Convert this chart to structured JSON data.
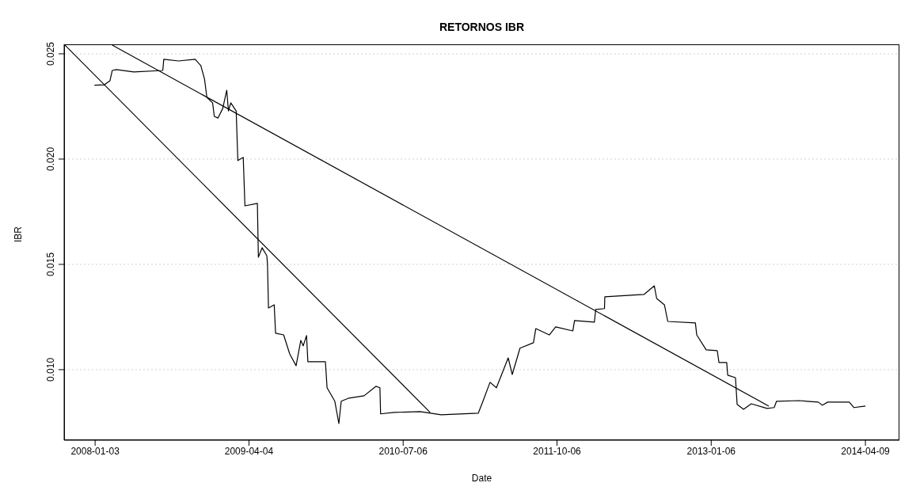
{
  "chart_data": {
    "type": "line",
    "title": "RETORNOS IBR",
    "xlabel": "Date",
    "ylabel": "IBR",
    "xlim": [
      "2007-10-03",
      "2014-07-19"
    ],
    "xticks": [
      "2008-01-03",
      "2009-04-04",
      "2010-07-06",
      "2011-10-06",
      "2013-01-06",
      "2014-04-09"
    ],
    "ylim": [
      0.00665,
      0.02545
    ],
    "yticks": [
      {
        "value": 0.01,
        "label": "0.010"
      },
      {
        "value": 0.015,
        "label": "0.015"
      },
      {
        "value": 0.02,
        "label": "0.020"
      },
      {
        "value": 0.025,
        "label": "0.025"
      }
    ],
    "grid": "y",
    "marker": "none",
    "line_style": "solid",
    "series": [
      {
        "color": "#000000",
        "x": [
          "2008-01-01",
          "2008-01-31",
          "2008-02-16",
          "2008-02-23",
          "2008-03-06",
          "2008-04-27",
          "2008-07-22",
          "2008-07-25",
          "2008-09-07",
          "2008-10-26",
          "2008-11-12",
          "2008-11-23",
          "2008-11-30",
          "2008-12-17",
          "2008-12-22",
          "2009-01-02",
          "2009-01-16",
          "2009-01-28",
          "2009-02-02",
          "2009-02-09",
          "2009-02-25",
          "2009-03-02",
          "2009-03-18",
          "2009-03-23",
          "2009-04-29",
          "2009-05-02",
          "2009-05-13",
          "2009-05-27",
          "2009-05-29",
          "2009-06-01",
          "2009-06-18",
          "2009-06-22",
          "2009-07-16",
          "2009-08-03",
          "2009-08-22",
          "2009-09-05",
          "2009-09-12",
          "2009-09-22",
          "2009-09-26",
          "2009-11-17",
          "2009-11-22",
          "2009-12-15",
          "2009-12-27",
          "2010-01-03",
          "2010-01-26",
          "2010-03-12",
          "2010-04-16",
          "2010-04-28",
          "2010-04-30",
          "2010-06-09",
          "2010-08-25",
          "2010-10-27",
          "2011-02-14",
          "2011-02-28",
          "2011-03-21",
          "2011-04-09",
          "2011-05-14",
          "2011-05-26",
          "2011-06-18",
          "2011-07-28",
          "2011-08-04",
          "2011-09-13",
          "2011-10-02",
          "2011-11-22",
          "2011-11-27",
          "2012-01-25",
          "2012-01-29",
          "2012-02-24",
          "2012-02-25",
          "2012-06-20",
          "2012-07-21",
          "2012-07-28",
          "2012-08-20",
          "2012-08-30",
          "2012-11-20",
          "2012-11-24",
          "2012-12-22",
          "2013-01-24",
          "2013-01-29",
          "2013-02-21",
          "2013-02-24",
          "2013-03-19",
          "2013-03-24",
          "2013-04-12",
          "2013-05-05",
          "2013-06-21",
          "2013-07-12",
          "2013-07-19",
          "2013-09-23",
          "2013-11-20",
          "2013-12-02",
          "2013-12-18",
          "2014-02-20",
          "2014-03-06",
          "2014-04-09"
        ],
        "values": [
          0.02351,
          0.02353,
          0.02372,
          0.02421,
          0.02425,
          0.02414,
          0.02421,
          0.02474,
          0.02466,
          0.02474,
          0.02444,
          0.0238,
          0.02293,
          0.02267,
          0.02203,
          0.02195,
          0.0224,
          0.02327,
          0.02229,
          0.02267,
          0.02229,
          0.01993,
          0.02008,
          0.01778,
          0.0179,
          0.01534,
          0.01579,
          0.01541,
          0.01504,
          0.01293,
          0.01308,
          0.01173,
          0.01165,
          0.01075,
          0.01019,
          0.01139,
          0.01113,
          0.01162,
          0.01038,
          0.01038,
          0.00914,
          0.0085,
          0.00744,
          0.0085,
          0.00865,
          0.00876,
          0.00921,
          0.00914,
          0.0079,
          0.00797,
          0.00801,
          0.00786,
          0.00793,
          0.0085,
          0.0094,
          0.00914,
          0.01056,
          0.00977,
          0.01102,
          0.01128,
          0.01195,
          0.01165,
          0.01203,
          0.01184,
          0.01233,
          0.01226,
          0.01286,
          0.0129,
          0.01346,
          0.01357,
          0.01398,
          0.01338,
          0.01308,
          0.01229,
          0.01222,
          0.01165,
          0.01094,
          0.0109,
          0.01034,
          0.01034,
          0.00974,
          0.00962,
          0.00835,
          0.00812,
          0.00838,
          0.00816,
          0.0082,
          0.0085,
          0.00853,
          0.00846,
          0.00831,
          0.00846,
          0.00846,
          0.0082,
          0.00827
        ]
      },
      {
        "color": "#000000",
        "x": [
          "2007-10-03",
          "2010-09-24"
        ],
        "values": [
          0.02545,
          0.00797
        ]
      },
      {
        "color": "#000000",
        "x": [
          "2008-02-23",
          "2013-06-26"
        ],
        "values": [
          0.02541,
          0.00827
        ]
      }
    ]
  }
}
